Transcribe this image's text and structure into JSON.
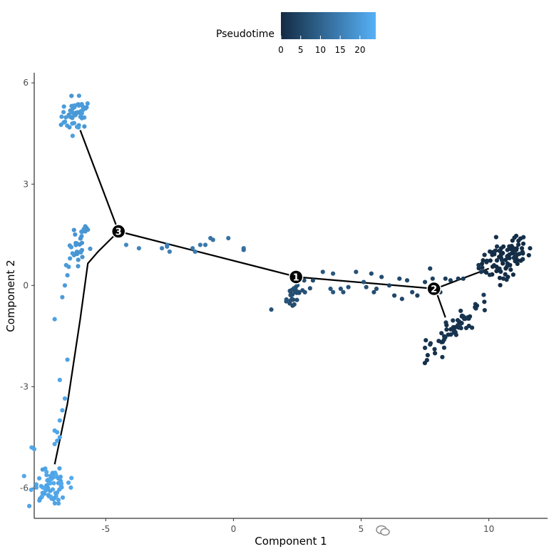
{
  "chart_data": {
    "type": "scatter",
    "title": "",
    "xlabel": "Component 1",
    "ylabel": "Component 2",
    "xlim": [
      -7.8,
      12.3
    ],
    "ylim": [
      -6.9,
      6.3
    ],
    "x_ticks": [
      -5,
      0,
      5,
      10
    ],
    "y_ticks": [
      -6,
      -3,
      0,
      3,
      6
    ],
    "grid": false,
    "color_scale": {
      "title": "Pseudotime",
      "min": 0,
      "max": 24,
      "ticks": [
        0,
        5,
        10,
        15,
        20
      ],
      "low_color": "#132B43",
      "high_color": "#56B1F7"
    },
    "trajectory": [
      {
        "points": [
          [
            -6.0,
            4.6
          ],
          [
            -4.5,
            1.6
          ],
          [
            2.5,
            0.25
          ],
          [
            7.9,
            -0.1
          ],
          [
            10.0,
            0.5
          ]
        ]
      },
      {
        "points": [
          [
            -4.5,
            1.6
          ],
          [
            -5.3,
            1.0
          ],
          [
            -5.7,
            0.65
          ],
          [
            -6.0,
            -1.0
          ],
          [
            -6.5,
            -3.5
          ],
          [
            -7.0,
            -5.3
          ]
        ]
      },
      {
        "points": [
          [
            7.9,
            -0.1
          ],
          [
            8.3,
            -0.95
          ]
        ]
      }
    ],
    "branch_nodes": [
      {
        "label": "1",
        "x": 2.45,
        "y": 0.25
      },
      {
        "label": "2",
        "x": 7.85,
        "y": -0.1
      },
      {
        "label": "3",
        "x": -4.5,
        "y": 1.6
      }
    ],
    "clusters": [
      {
        "cx": 10.6,
        "cy": 0.8,
        "sx": 0.5,
        "sy": 0.3,
        "n": 95,
        "t": 0.5,
        "corr": 0.3
      },
      {
        "cx": 8.8,
        "cy": -1.2,
        "sx": 0.6,
        "sy": 0.35,
        "n": 60,
        "t": 1.5,
        "corr": 0.8
      },
      {
        "cx": 2.5,
        "cy": -0.25,
        "sx": 0.3,
        "sy": 0.15,
        "n": 28,
        "t": 6.5,
        "corr": 0.3
      },
      {
        "cx": -6.2,
        "cy": 5.1,
        "sx": 0.25,
        "sy": 0.25,
        "n": 55,
        "t": 20,
        "corr": 0.2
      },
      {
        "cx": -6.1,
        "cy": 1.2,
        "sx": 0.15,
        "sy": 0.3,
        "n": 28,
        "t": 19,
        "corr": 0
      },
      {
        "cx": -7.2,
        "cy": -5.9,
        "sx": 0.35,
        "sy": 0.25,
        "n": 70,
        "t": 22,
        "corr": 0
      }
    ],
    "points": [
      [
        -7.9,
        -4.8,
        22
      ],
      [
        -7.8,
        -4.85,
        22
      ],
      [
        -7.0,
        -4.3,
        22
      ],
      [
        -6.9,
        -4.35,
        22
      ],
      [
        -6.8,
        -4.5,
        22
      ],
      [
        -6.9,
        -4.6,
        22
      ],
      [
        -7.0,
        -4.7,
        22
      ],
      [
        -6.8,
        -4.0,
        22
      ],
      [
        -6.7,
        -3.7,
        22
      ],
      [
        -6.6,
        -3.35,
        22
      ],
      [
        -6.8,
        -2.8,
        22
      ],
      [
        -6.5,
        -2.2,
        21
      ],
      [
        -7.0,
        -1.0,
        21
      ],
      [
        -6.7,
        -0.35,
        20
      ],
      [
        -6.6,
        0.0,
        20
      ],
      [
        -6.5,
        0.3,
        20
      ],
      [
        -6.45,
        0.55,
        20
      ],
      [
        -6.55,
        0.6,
        20
      ],
      [
        -6.4,
        0.8,
        20
      ],
      [
        -6.3,
        0.95,
        20
      ],
      [
        -5.8,
        1.75,
        19
      ],
      [
        -5.75,
        1.7,
        19
      ],
      [
        -5.7,
        1.65,
        19
      ],
      [
        -5.8,
        1.6,
        19
      ],
      [
        -4.2,
        1.2,
        17
      ],
      [
        -3.7,
        1.1,
        16
      ],
      [
        -2.8,
        1.1,
        15
      ],
      [
        -2.6,
        1.15,
        15
      ],
      [
        -2.6,
        1.2,
        15
      ],
      [
        -2.5,
        1.0,
        15
      ],
      [
        -1.6,
        1.1,
        14
      ],
      [
        -1.5,
        1.0,
        14
      ],
      [
        -1.3,
        1.2,
        14
      ],
      [
        -1.1,
        1.2,
        14
      ],
      [
        -0.9,
        1.4,
        13
      ],
      [
        -0.8,
        1.35,
        13
      ],
      [
        -0.2,
        1.4,
        13
      ],
      [
        0.4,
        1.1,
        12
      ],
      [
        0.4,
        1.05,
        12
      ],
      [
        3.5,
        0.4,
        8
      ],
      [
        3.8,
        -0.1,
        8
      ],
      [
        3.9,
        0.35,
        8
      ],
      [
        3.9,
        -0.2,
        8
      ],
      [
        4.2,
        -0.1,
        7
      ],
      [
        4.3,
        -0.2,
        7
      ],
      [
        4.5,
        -0.05,
        7
      ],
      [
        4.8,
        0.4,
        7
      ],
      [
        5.1,
        0.1,
        7
      ],
      [
        5.2,
        -0.05,
        7
      ],
      [
        5.4,
        0.35,
        6
      ],
      [
        5.5,
        -0.2,
        6
      ],
      [
        5.6,
        -0.1,
        6
      ],
      [
        5.8,
        0.25,
        6
      ],
      [
        6.1,
        0.0,
        5
      ],
      [
        6.3,
        -0.3,
        5
      ],
      [
        6.5,
        0.2,
        5
      ],
      [
        6.6,
        -0.4,
        5
      ],
      [
        6.8,
        0.15,
        5
      ],
      [
        7.0,
        -0.2,
        5
      ],
      [
        7.2,
        -0.3,
        4
      ],
      [
        7.5,
        0.1,
        4
      ],
      [
        7.7,
        0.5,
        4
      ],
      [
        7.8,
        0.2,
        4
      ],
      [
        8.1,
        -0.2,
        3
      ],
      [
        8.3,
        0.2,
        3
      ],
      [
        8.5,
        0.15,
        3
      ],
      [
        8.8,
        0.2,
        3
      ],
      [
        9.0,
        0.2,
        3
      ],
      [
        9.6,
        0.6,
        2
      ],
      [
        9.7,
        0.4,
        2
      ],
      [
        7.5,
        -1.85,
        2
      ],
      [
        7.7,
        -1.75,
        2
      ]
    ]
  }
}
